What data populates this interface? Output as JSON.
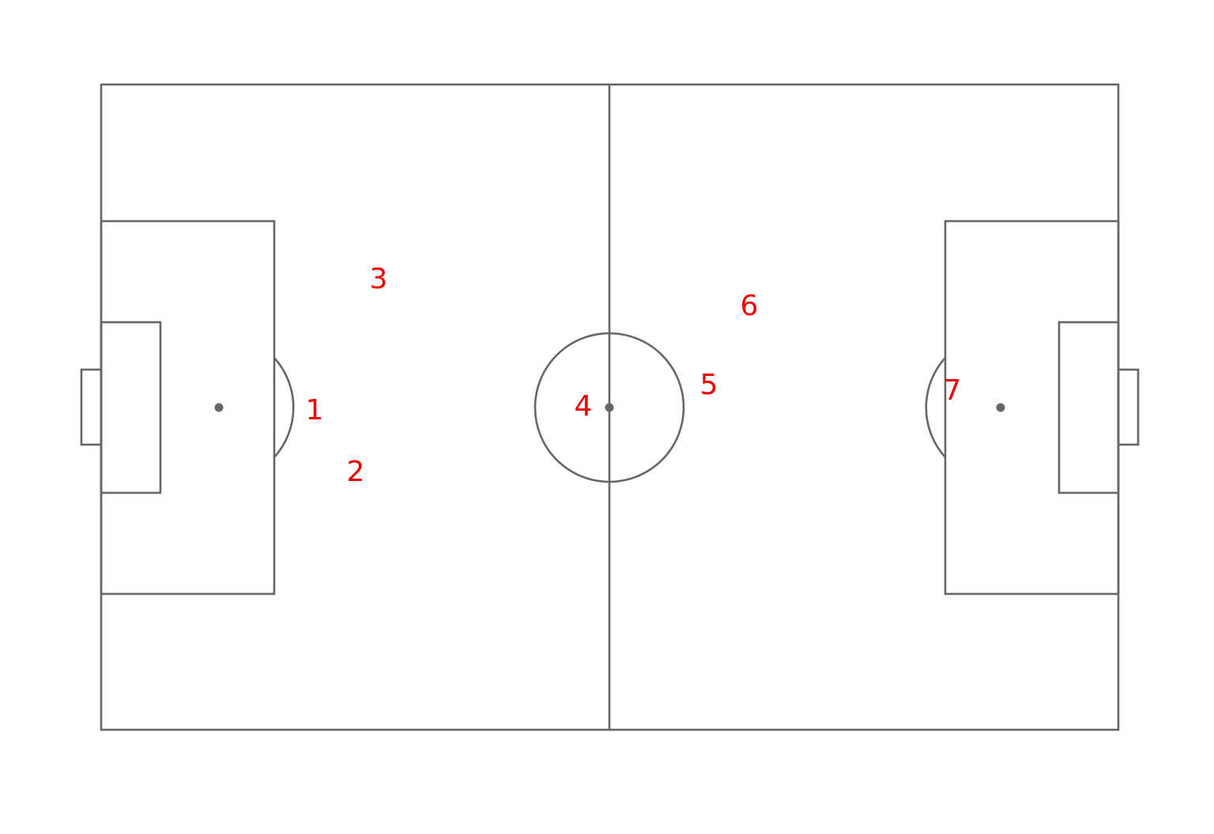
{
  "colors": {
    "pitch_lines": "#666666",
    "markers": "#ee0000",
    "background": "#ffffff"
  },
  "markers": [
    {
      "label": "1"
    },
    {
      "label": "2"
    },
    {
      "label": "3"
    },
    {
      "label": "4"
    },
    {
      "label": "5"
    },
    {
      "label": "6"
    },
    {
      "label": "7"
    }
  ]
}
